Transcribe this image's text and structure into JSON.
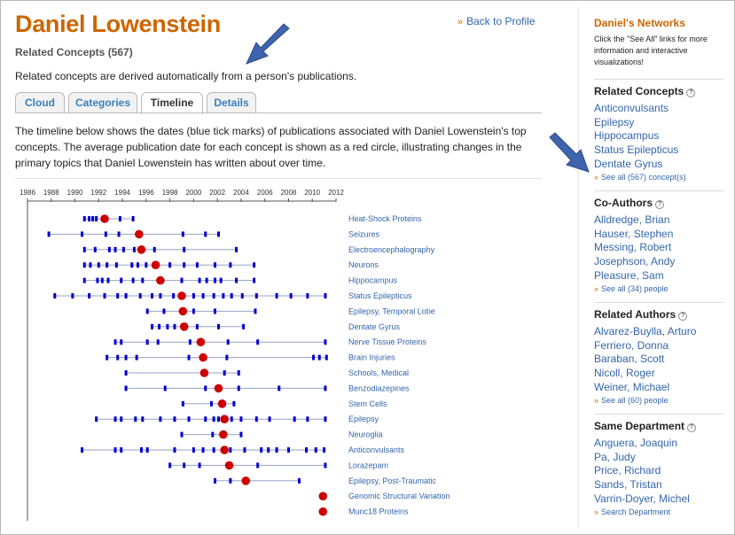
{
  "profile": {
    "name": "Daniel Lowenstein",
    "subtitle": "Related Concepts (567)",
    "intro": "Related concepts are derived automatically from a person's publications.",
    "back_link": "Back to Profile"
  },
  "tabs": [
    {
      "label": "Cloud",
      "active": false
    },
    {
      "label": "Categories",
      "active": false
    },
    {
      "label": "Timeline",
      "active": true
    },
    {
      "label": "Details",
      "active": false
    }
  ],
  "description": "The timeline below shows the dates (blue tick marks) of publications associated with Daniel Lowenstein's top concepts. The average publication date for each concept is shown as a red circle, illustrating changes in the primary topics that Daniel Lowenstein has written about over time.",
  "colors": {
    "name": "#cc6600",
    "link": "#3366aa",
    "tick": "#0000cc",
    "average": "#cc0000",
    "range_line": "#9aa0c8",
    "chevron": "#e8912c",
    "annotation_arrow": "#3e64ad"
  },
  "chart_data": {
    "type": "timeline",
    "x_ticks": [
      1986,
      1988,
      1990,
      1992,
      1994,
      1996,
      1998,
      2000,
      2002,
      2004,
      2006,
      2008,
      2010,
      2012
    ],
    "xlim": [
      1986,
      2012
    ],
    "concepts": [
      {
        "label": "Heat-Shock Proteins",
        "avg": 1992.5,
        "pubs": [
          1990.8,
          1991.2,
          1991.5,
          1991.8,
          1992.5,
          1993.8,
          1994.9
        ]
      },
      {
        "label": "Seizures",
        "avg": 1995.4,
        "pubs": [
          1987.8,
          1990.6,
          1992.6,
          1993.7,
          1995.4,
          1999.1,
          2001.0,
          2002.1
        ]
      },
      {
        "label": "Electroencephalography",
        "avg": 1995.6,
        "pubs": [
          1990.8,
          1991.7,
          1992.9,
          1993.4,
          1994.1,
          1995.0,
          1995.6,
          1996.7,
          1999.2,
          2003.6
        ]
      },
      {
        "label": "Neurons",
        "avg": 1996.8,
        "pubs": [
          1990.8,
          1991.3,
          1992.0,
          1992.7,
          1993.5,
          1994.8,
          1995.3,
          1996.0,
          1996.8,
          1998.0,
          1999.2,
          2000.3,
          2001.8,
          2003.1,
          2005.1
        ]
      },
      {
        "label": "Hippocampus",
        "avg": 1997.2,
        "pubs": [
          1990.8,
          1991.9,
          1992.3,
          1992.8,
          1993.9,
          1994.9,
          1995.7,
          1997.2,
          1999.0,
          2000.5,
          2001.1,
          2001.8,
          2002.3,
          2003.6,
          2005.1
        ]
      },
      {
        "label": "Status Epilepticus",
        "avg": 1999.0,
        "pubs": [
          1988.3,
          1989.8,
          1991.2,
          1992.5,
          1993.6,
          1994.3,
          1995.5,
          1996.5,
          1997.2,
          1998.3,
          1999.0,
          2000.0,
          2000.8,
          2001.7,
          2002.5,
          2003.2,
          2004.1,
          2005.3,
          2007.0,
          2008.2,
          2009.6,
          2011.1
        ]
      },
      {
        "label": "Epilepsy, Temporal Lobe",
        "avg": 1999.1,
        "pubs": [
          1996.1,
          1997.5,
          1999.1,
          2000.0,
          2001.8,
          2005.2
        ]
      },
      {
        "label": "Dentate Gyrus",
        "avg": 1999.2,
        "pubs": [
          1996.5,
          1997.1,
          1997.8,
          1998.4,
          1999.2,
          2000.3,
          2002.1,
          2004.2
        ]
      },
      {
        "label": "Nerve Tissue Proteins",
        "avg": 2000.6,
        "pubs": [
          1993.4,
          1993.9,
          1996.1,
          1997.0,
          1999.7,
          2000.6,
          2002.9,
          2005.4,
          2011.1
        ]
      },
      {
        "label": "Brain Injuries",
        "avg": 2000.8,
        "pubs": [
          1992.7,
          1993.6,
          1994.3,
          1995.2,
          1999.6,
          2000.8,
          2002.8,
          2010.1,
          2010.6,
          2011.2
        ]
      },
      {
        "label": "Schools, Medical",
        "avg": 2000.9,
        "pubs": [
          1994.3,
          2000.9,
          2002.6,
          2003.8
        ]
      },
      {
        "label": "Benzodiazepines",
        "avg": 2002.1,
        "pubs": [
          1994.3,
          1997.6,
          2001.0,
          2002.1,
          2003.8,
          2007.2,
          2011.1
        ]
      },
      {
        "label": "Stem Cells",
        "avg": 2002.4,
        "pubs": [
          1999.1,
          2001.5,
          2002.4,
          2003.4
        ]
      },
      {
        "label": "Epilepsy",
        "avg": 2002.6,
        "pubs": [
          1991.8,
          1993.4,
          1993.9,
          1995.1,
          1995.7,
          1997.2,
          1998.4,
          1999.6,
          2001.0,
          2001.7,
          2002.1,
          2002.6,
          2003.2,
          2004.0,
          2005.3,
          2006.4,
          2008.5,
          2009.6,
          2011.1
        ]
      },
      {
        "label": "Neuroglia",
        "avg": 2002.5,
        "pubs": [
          1999.0,
          2001.6,
          2002.5,
          2004.0
        ]
      },
      {
        "label": "Anticonvulsants",
        "avg": 2002.6,
        "pubs": [
          1990.6,
          1993.4,
          1993.9,
          1995.6,
          1996.1,
          1998.4,
          2000.0,
          2000.8,
          2001.7,
          2002.6,
          2003.1,
          2004.3,
          2005.7,
          2006.3,
          2007.0,
          2008.0,
          2009.5,
          2010.3,
          2011.0
        ]
      },
      {
        "label": "Lorazepam",
        "avg": 2003.0,
        "pubs": [
          1998.0,
          1999.2,
          2000.5,
          2003.0,
          2005.4,
          2011.1
        ]
      },
      {
        "label": "Epilepsy, Post-Traumatic",
        "avg": 2004.4,
        "pubs": [
          2001.8,
          2003.1,
          2004.4,
          2008.9
        ]
      },
      {
        "label": "Genomic Structural Variation",
        "avg": 2010.9,
        "pubs": [
          2010.9
        ]
      },
      {
        "label": "Munc18 Proteins",
        "avg": 2010.9,
        "pubs": [
          2010.9
        ]
      }
    ]
  },
  "sidebar": {
    "title": "Daniel's Networks",
    "note": "Click the \"See All\" links for more information and interactive visualizations!",
    "sections": [
      {
        "heading": "Related Concepts",
        "items": [
          "Anticonvulsants",
          "Epilepsy",
          "Hippocampus",
          "Status Epilepticus",
          "Dentate Gyrus"
        ],
        "see_all": "See all (567) concept(s)"
      },
      {
        "heading": "Co-Authors",
        "items": [
          "Alldredge, Brian",
          "Hauser, Stephen",
          "Messing, Robert",
          "Josephson, Andy",
          "Pleasure, Sam"
        ],
        "see_all": "See all (34) people"
      },
      {
        "heading": "Related Authors",
        "items": [
          "Alvarez-Buylla, Arturo",
          "Ferriero, Donna",
          "Baraban, Scott",
          "Nicoll, Roger",
          "Weiner, Michael"
        ],
        "see_all": "See all (60) people"
      },
      {
        "heading": "Same Department",
        "items": [
          "Anguera, Joaquin",
          "Pa, Judy",
          "Price, Richard",
          "Sands, Tristan",
          "Varrin-Doyer, Michel"
        ],
        "see_all": "Search Department"
      }
    ]
  }
}
